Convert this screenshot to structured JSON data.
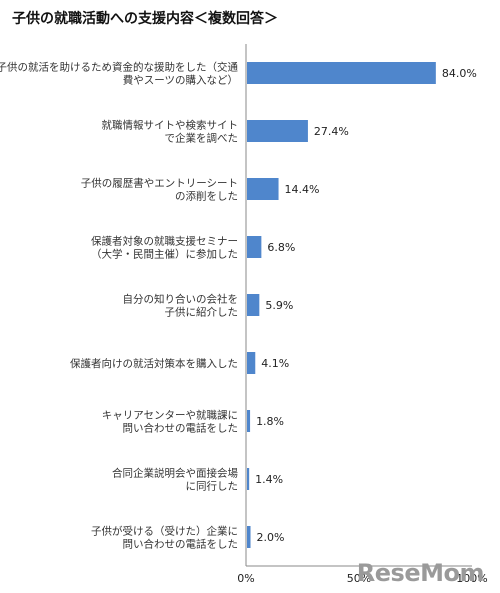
{
  "chart_data": {
    "type": "bar",
    "orientation": "horizontal",
    "title": "子供の就職活動への支援内容＜複数回答＞",
    "xlim": [
      0,
      100
    ],
    "ticks": [
      "0%",
      "50%",
      "100%"
    ],
    "color": "#4f86cc",
    "grid": false,
    "categories": [
      [
        "子供の就活を助けるため資金的な援助をした（交通",
        "費やスーツの購入など）"
      ],
      [
        "就職情報サイトや検索サイト",
        "で企業を調べた"
      ],
      [
        "子供の履歴書やエントリーシート",
        "の添削をした"
      ],
      [
        "保護者対象の就職支援セミナー",
        "（大学・民間主催）に参加した"
      ],
      [
        "自分の知り合いの会社を",
        "子供に紹介した"
      ],
      [
        "保護者向けの就活対策本を購入した"
      ],
      [
        "キャリアセンターや就職課に",
        "問い合わせの電話をした"
      ],
      [
        "合同企業説明会や面接会場",
        "に同行した"
      ],
      [
        "子供が受ける（受けた）企業に",
        "問い合わせの電話をした"
      ]
    ],
    "values": [
      84.0,
      27.4,
      14.4,
      6.8,
      5.9,
      4.1,
      1.8,
      1.4,
      2.0
    ],
    "value_labels": [
      "84.0%",
      "27.4%",
      "14.4%",
      "6.8%",
      "5.9%",
      "4.1%",
      "1.8%",
      "1.4%",
      "2.0%"
    ]
  },
  "watermark": "ReseMom"
}
